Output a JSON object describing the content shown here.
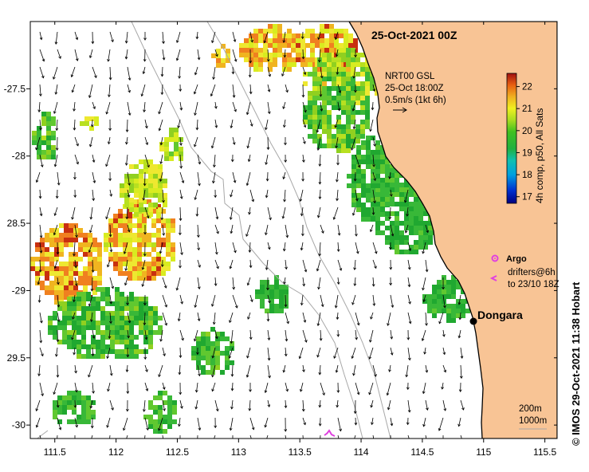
{
  "title": "25-Oct-2021 00Z",
  "current_legend": {
    "line1": "NRT00 GSL",
    "line2": "25-Oct 18:00Z",
    "line3": "0.5m/s (1kt 6h)"
  },
  "colorbar": {
    "label": "4h comp, p50, All Sats",
    "ticks": [
      "22",
      "21",
      "20",
      "19",
      "18",
      "17"
    ],
    "vmin": 16.7,
    "vmax": 22.6
  },
  "argo": {
    "label": "Argo",
    "drifters_line1": "drifters@6h",
    "drifters_line2": "to 23/10 18Z"
  },
  "place": {
    "name": "Dongara",
    "lon": 114.92,
    "lat": -29.25
  },
  "contours": {
    "depth1": "200m",
    "depth2": "1000m"
  },
  "credit": "© IMOS 29-Oct-2021 11:38 Hobart",
  "axes": {
    "lon_ticks": [
      "111.5",
      "112",
      "112.5",
      "113",
      "113.5",
      "114",
      "114.5",
      "115",
      "115.5"
    ],
    "lat_ticks": [
      "-27.5",
      "-28",
      "28.5",
      "-29",
      "29.5",
      "-30"
    ],
    "lon_range": [
      111.3,
      115.6
    ],
    "lat_range": [
      -30.1,
      -27.0
    ]
  },
  "colors": {
    "land": "#f8c495",
    "coastline": "#000000",
    "bathymetry": "#a8a8a8",
    "argo_marker": "#e040e0"
  }
}
